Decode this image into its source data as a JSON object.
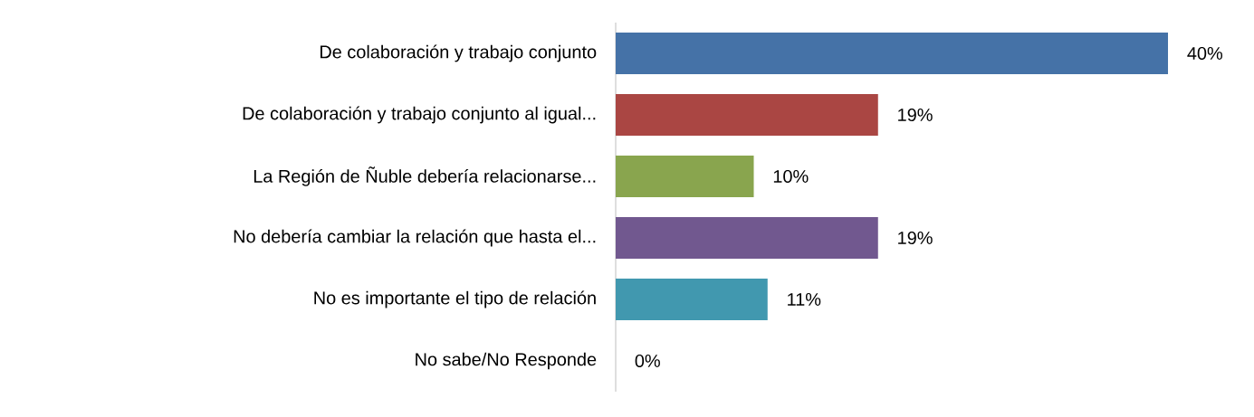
{
  "chart_data": {
    "type": "bar",
    "orientation": "horizontal",
    "categories": [
      "De colaboración y trabajo conjunto",
      "De colaboración y trabajo conjunto al igual...",
      "La Región de Ñuble debería relacionarse...",
      "No debería cambiar la relación que hasta el...",
      "No es importante el tipo de relación",
      "No sabe/No Responde"
    ],
    "values": [
      40,
      19,
      10,
      19,
      11,
      0
    ],
    "colors": [
      "#4572a7",
      "#aa4643",
      "#89a54e",
      "#71588f",
      "#4198af",
      "#db843d"
    ],
    "value_labels": [
      "40%",
      "19%",
      "10%",
      "19%",
      "11%",
      "0%"
    ],
    "tick_labels": "y"
  }
}
